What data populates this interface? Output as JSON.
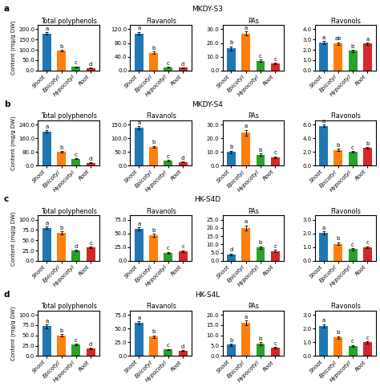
{
  "chart_data": [
    {
      "type": "bar",
      "row_label": "a",
      "row_title": "MKDY-S3",
      "title": "Total polyphenols",
      "ylabel": "Content (mg/g DW)",
      "categories": [
        "Shoot",
        "Epicotyl",
        "Hypocotyl",
        "Root"
      ],
      "values": [
        180,
        95,
        18,
        12
      ],
      "errors": [
        5,
        4,
        2,
        1.5
      ],
      "annotations": [
        "a",
        "b",
        "c",
        "d"
      ],
      "colors": [
        "#1f77b4",
        "#ff7f0e",
        "#2ca02c",
        "#d62728"
      ],
      "ylim": [
        0,
        220
      ],
      "yticks": [
        {
          "value": 0,
          "label": "0.0"
        },
        {
          "value": 50,
          "label": "50.0"
        },
        {
          "value": 100,
          "label": "100.0"
        },
        {
          "value": 150,
          "label": "150.0"
        },
        {
          "value": 200,
          "label": "200.0"
        }
      ]
    },
    {
      "type": "bar",
      "title": "Flavanols",
      "categories": [
        "Shoot",
        "Epicotyl",
        "Hypocotyl",
        "Root"
      ],
      "values": [
        108,
        52,
        10,
        8
      ],
      "errors": [
        4,
        3,
        1,
        0.8
      ],
      "annotations": [
        "a",
        "b",
        "c",
        "d"
      ],
      "colors": [
        "#1f77b4",
        "#ff7f0e",
        "#2ca02c",
        "#d62728"
      ],
      "ylim": [
        0,
        132
      ],
      "yticks": [
        {
          "value": 0,
          "label": "0.0"
        },
        {
          "value": 40,
          "label": "40.0"
        },
        {
          "value": 80,
          "label": "80.0"
        },
        {
          "value": 120,
          "label": "120.0"
        }
      ]
    },
    {
      "type": "bar",
      "title": "PAs",
      "categories": [
        "Shoot",
        "Epicotyl",
        "Hypocotyl",
        "Root"
      ],
      "values": [
        16,
        27,
        7,
        5
      ],
      "errors": [
        1.5,
        1.5,
        0.8,
        0.7
      ],
      "annotations": [
        "b",
        "a",
        "c",
        "c"
      ],
      "colors": [
        "#1f77b4",
        "#ff7f0e",
        "#2ca02c",
        "#d62728"
      ],
      "ylim": [
        0,
        33
      ],
      "yticks": [
        {
          "value": 0,
          "label": "0.0"
        },
        {
          "value": 10,
          "label": "10.0"
        },
        {
          "value": 20,
          "label": "20.0"
        },
        {
          "value": 30,
          "label": "30.0"
        }
      ]
    },
    {
      "type": "bar",
      "title": "Flavonols",
      "categories": [
        "Shoot",
        "Epicotyl",
        "Hypocotyl",
        "Root"
      ],
      "values": [
        2.7,
        2.6,
        1.9,
        2.6
      ],
      "errors": [
        0.15,
        0.12,
        0.1,
        0.1
      ],
      "annotations": [
        "a",
        "ab",
        "b",
        "a"
      ],
      "colors": [
        "#1f77b4",
        "#ff7f0e",
        "#2ca02c",
        "#d62728"
      ],
      "ylim": [
        0,
        4.4
      ],
      "yticks": [
        {
          "value": 0,
          "label": "0.0"
        },
        {
          "value": 1,
          "label": "1.0"
        },
        {
          "value": 2,
          "label": "2.0"
        },
        {
          "value": 3,
          "label": "3.0"
        },
        {
          "value": 4,
          "label": "4.0"
        }
      ]
    },
    {
      "type": "bar",
      "row_label": "b",
      "row_title": "MKDY-S4",
      "title": "Total polyphenols",
      "ylabel": "Content (mg/g DW)",
      "categories": [
        "Shoot",
        "Epicotyl",
        "Hypocotyl",
        "Root"
      ],
      "values": [
        200,
        82,
        40,
        18
      ],
      "errors": [
        7,
        4,
        3,
        1.5
      ],
      "annotations": [
        "a",
        "b",
        "c",
        "d"
      ],
      "colors": [
        "#1f77b4",
        "#ff7f0e",
        "#2ca02c",
        "#d62728"
      ],
      "ylim": [
        0,
        265
      ],
      "yticks": [
        {
          "value": 0,
          "label": "0.0"
        },
        {
          "value": 80,
          "label": "80.0"
        },
        {
          "value": 160,
          "label": "160.0"
        },
        {
          "value": 240,
          "label": "240.0"
        }
      ]
    },
    {
      "type": "bar",
      "title": "Flavanols",
      "categories": [
        "Shoot",
        "Epicotyl",
        "Hypocotyl",
        "Root"
      ],
      "values": [
        138,
        68,
        18,
        14
      ],
      "errors": [
        5,
        4,
        2,
        1.5
      ],
      "annotations": [
        "a",
        "b",
        "c",
        "d"
      ],
      "colors": [
        "#1f77b4",
        "#ff7f0e",
        "#2ca02c",
        "#d62728"
      ],
      "ylim": [
        0,
        165
      ],
      "yticks": [
        {
          "value": 0,
          "label": "0.0"
        },
        {
          "value": 50,
          "label": "50.0"
        },
        {
          "value": 100,
          "label": "100.0"
        },
        {
          "value": 150,
          "label": "150.0"
        }
      ]
    },
    {
      "type": "bar",
      "title": "PAs",
      "categories": [
        "Shoot",
        "Epicotyl",
        "Hypocotyl",
        "Root"
      ],
      "values": [
        10,
        24,
        8,
        6
      ],
      "errors": [
        1,
        2,
        1,
        0.8
      ],
      "annotations": [
        "b",
        "a",
        "b",
        "c"
      ],
      "colors": [
        "#1f77b4",
        "#ff7f0e",
        "#2ca02c",
        "#d62728"
      ],
      "ylim": [
        0,
        33
      ],
      "yticks": [
        {
          "value": 0,
          "label": "0.0"
        },
        {
          "value": 10,
          "label": "10.0"
        },
        {
          "value": 20,
          "label": "20.0"
        },
        {
          "value": 30,
          "label": "30.0"
        }
      ]
    },
    {
      "type": "bar",
      "title": "Flavonols",
      "categories": [
        "Shoot",
        "Epicotyl",
        "Hypocotyl",
        "Root"
      ],
      "values": [
        5.8,
        2.3,
        2.0,
        2.6
      ],
      "errors": [
        0.2,
        0.15,
        0.12,
        0.12
      ],
      "annotations": [
        "a",
        "b",
        "c",
        "b"
      ],
      "colors": [
        "#1f77b4",
        "#ff7f0e",
        "#2ca02c",
        "#d62728"
      ],
      "ylim": [
        0,
        6.6
      ],
      "yticks": [
        {
          "value": 0,
          "label": "0.0"
        },
        {
          "value": 2,
          "label": "2.0"
        },
        {
          "value": 4,
          "label": "4.0"
        },
        {
          "value": 6,
          "label": "6.0"
        }
      ]
    },
    {
      "type": "bar",
      "row_label": "c",
      "row_title": "HK-S4D",
      "title": "Total polyphenols",
      "ylabel": "Content (mg/g DW)",
      "categories": [
        "Shoot",
        "Epicotyl",
        "Hypocotyl",
        "Root"
      ],
      "values": [
        80,
        68,
        25,
        32
      ],
      "errors": [
        3,
        4,
        2,
        2
      ],
      "annotations": [
        "a",
        "b",
        "d",
        "c"
      ],
      "colors": [
        "#1f77b4",
        "#ff7f0e",
        "#2ca02c",
        "#d62728"
      ],
      "ylim": [
        0,
        110
      ],
      "yticks": [
        {
          "value": 0,
          "label": "0.0"
        },
        {
          "value": 25,
          "label": "25.0"
        },
        {
          "value": 50,
          "label": "50.0"
        },
        {
          "value": 75,
          "label": "75.0"
        },
        {
          "value": 100,
          "label": "100.0"
        }
      ]
    },
    {
      "type": "bar",
      "title": "Flavanols",
      "categories": [
        "Shoot",
        "Epicotyl",
        "Hypocotyl",
        "Root"
      ],
      "values": [
        58,
        46,
        15,
        18
      ],
      "errors": [
        3,
        3,
        1.5,
        1.5
      ],
      "annotations": [
        "a",
        "b",
        "c",
        "c"
      ],
      "colors": [
        "#1f77b4",
        "#ff7f0e",
        "#2ca02c",
        "#d62728"
      ],
      "ylim": [
        0,
        82.5
      ],
      "yticks": [
        {
          "value": 0,
          "label": "0.0"
        },
        {
          "value": 25,
          "label": "25.0"
        },
        {
          "value": 50,
          "label": "50.0"
        },
        {
          "value": 75,
          "label": "75.0"
        }
      ]
    },
    {
      "type": "bar",
      "title": "PAs",
      "categories": [
        "Shoot",
        "Epicotyl",
        "Hypocotyl",
        "Root"
      ],
      "values": [
        4,
        20,
        8,
        6
      ],
      "errors": [
        0.5,
        1.5,
        0.8,
        0.7
      ],
      "annotations": [
        "d",
        "a",
        "b",
        "c"
      ],
      "colors": [
        "#1f77b4",
        "#ff7f0e",
        "#2ca02c",
        "#d62728"
      ],
      "ylim": [
        0,
        27.5
      ],
      "yticks": [
        {
          "value": 0,
          "label": "0.0"
        },
        {
          "value": 5,
          "label": "5.0"
        },
        {
          "value": 10,
          "label": "10.0"
        },
        {
          "value": 15,
          "label": "15.0"
        },
        {
          "value": 20,
          "label": "20.0"
        },
        {
          "value": 25,
          "label": "25.0"
        }
      ]
    },
    {
      "type": "bar",
      "title": "Flavonols",
      "categories": [
        "Shoot",
        "Epicotyl",
        "Hypocotyl",
        "Root"
      ],
      "values": [
        2.05,
        1.25,
        0.85,
        1.0
      ],
      "errors": [
        0.1,
        0.1,
        0.07,
        0.07
      ],
      "annotations": [
        "a",
        "b",
        "c",
        "c"
      ],
      "colors": [
        "#1f77b4",
        "#ff7f0e",
        "#2ca02c",
        "#d62728"
      ],
      "ylim": [
        0,
        3.3
      ],
      "yticks": [
        {
          "value": 0,
          "label": "0.0"
        },
        {
          "value": 1,
          "label": "1.0"
        },
        {
          "value": 2,
          "label": "2.0"
        },
        {
          "value": 3,
          "label": "3.0"
        }
      ]
    },
    {
      "type": "bar",
      "row_label": "d",
      "row_title": "HK-S4L",
      "title": "Total polyphenols",
      "ylabel": "Content (mg/g DW)",
      "categories": [
        "Shoot",
        "Epicotyl",
        "Hypocotyl",
        "Root"
      ],
      "values": [
        72,
        50,
        28,
        18
      ],
      "errors": [
        4,
        3,
        2,
        1.5
      ],
      "annotations": [
        "a",
        "b",
        "c",
        "d"
      ],
      "colors": [
        "#1f77b4",
        "#ff7f0e",
        "#2ca02c",
        "#d62728"
      ],
      "ylim": [
        0,
        110
      ],
      "yticks": [
        {
          "value": 0,
          "label": "0.0"
        },
        {
          "value": 25,
          "label": "25.0"
        },
        {
          "value": 50,
          "label": "50.0"
        },
        {
          "value": 75,
          "label": "75.0"
        },
        {
          "value": 100,
          "label": "100.0"
        }
      ]
    },
    {
      "type": "bar",
      "title": "Flavanols",
      "categories": [
        "Shoot",
        "Epicotyl",
        "Hypocotyl",
        "Root"
      ],
      "values": [
        60,
        35,
        12,
        10
      ],
      "errors": [
        3,
        2.5,
        1,
        1
      ],
      "annotations": [
        "a",
        "b",
        "c",
        "d"
      ],
      "colors": [
        "#1f77b4",
        "#ff7f0e",
        "#2ca02c",
        "#d62728"
      ],
      "ylim": [
        0,
        82.5
      ],
      "yticks": [
        {
          "value": 0,
          "label": "0.0"
        },
        {
          "value": 25,
          "label": "25.0"
        },
        {
          "value": 50,
          "label": "50.0"
        },
        {
          "value": 75,
          "label": "75.0"
        }
      ]
    },
    {
      "type": "bar",
      "title": "PAs",
      "categories": [
        "Shoot",
        "Epicotyl",
        "Hypocotyl",
        "Root"
      ],
      "values": [
        5.5,
        16,
        6,
        4
      ],
      "errors": [
        0.5,
        1.2,
        0.7,
        0.5
      ],
      "annotations": [
        "b",
        "a",
        "b",
        "c"
      ],
      "colors": [
        "#1f77b4",
        "#ff7f0e",
        "#2ca02c",
        "#d62728"
      ],
      "ylim": [
        0,
        22
      ],
      "yticks": [
        {
          "value": 0,
          "label": "0.0"
        },
        {
          "value": 5,
          "label": "5.0"
        },
        {
          "value": 10,
          "label": "10.0"
        },
        {
          "value": 15,
          "label": "15.0"
        },
        {
          "value": 20,
          "label": "20.0"
        }
      ]
    },
    {
      "type": "bar",
      "title": "Flavonols",
      "categories": [
        "Shoot",
        "Epicotyl",
        "Hypocotyl",
        "Root"
      ],
      "values": [
        2.2,
        1.35,
        0.75,
        1.0
      ],
      "errors": [
        0.12,
        0.1,
        0.06,
        0.07
      ],
      "annotations": [
        "a",
        "b",
        "c",
        "c"
      ],
      "colors": [
        "#1f77b4",
        "#ff7f0e",
        "#2ca02c",
        "#d62728"
      ],
      "ylim": [
        0,
        3.3
      ],
      "yticks": [
        {
          "value": 0,
          "label": "0.0"
        },
        {
          "value": 1,
          "label": "1.0"
        },
        {
          "value": 2,
          "label": "2.0"
        },
        {
          "value": 3,
          "label": "3.0"
        }
      ]
    }
  ]
}
